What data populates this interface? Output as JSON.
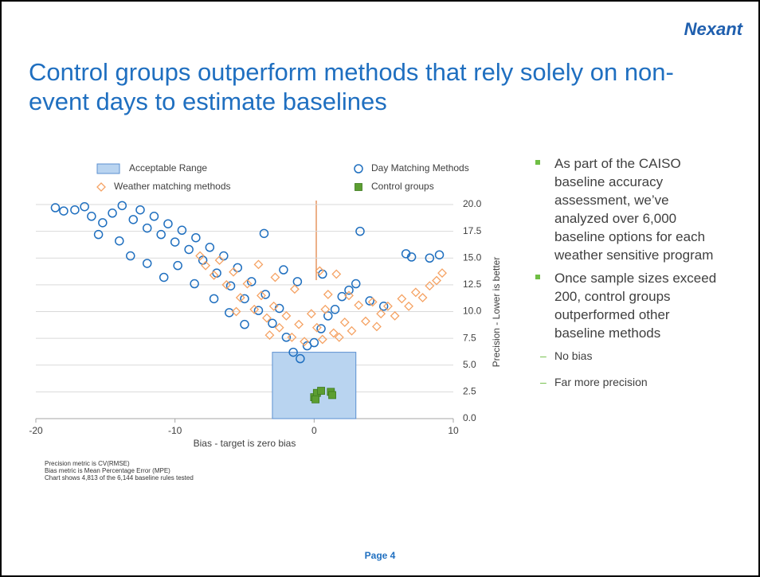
{
  "logo": "Nexant",
  "title": "Control groups outperform methods that rely solely on non-event days to estimate baselines",
  "bullets": [
    {
      "text": "As part of the CAISO baseline accuracy assessment, we’ve analyzed over 6,000 baseline options for each weather sensitive program",
      "sub": []
    },
    {
      "text": "Once sample sizes exceed 200, control groups outperformed other baseline methods",
      "sub": [
        "No bias",
        "Far more precision"
      ]
    }
  ],
  "footnotes": [
    "Precision metric is CV(RMSE)",
    "Bias metric is Mean Percentage Error (MPE)",
    "Chart shows 4,813 of the 6,144 baseline rules tested"
  ],
  "page_label": "Page 4",
  "chart_data": {
    "type": "scatter",
    "xlabel": "Bias - target is zero bias",
    "ylabel": "Precision - Lower is better",
    "xlim": [
      -20,
      10
    ],
    "xticks": [
      -20,
      -10,
      0,
      10
    ],
    "ylim": [
      0,
      20
    ],
    "yticks": [
      {
        "value": 0,
        "label": "0.0"
      },
      {
        "value": 2.5,
        "label": "2.5"
      },
      {
        "value": 5,
        "label": "5.0"
      },
      {
        "value": 7.5,
        "label": "7.5"
      },
      {
        "value": 10,
        "label": "10.0"
      },
      {
        "value": 12.5,
        "label": "12.5"
      },
      {
        "value": 15,
        "label": "15.0"
      },
      {
        "value": 17.5,
        "label": "17.5"
      },
      {
        "value": 20,
        "label": "20.0"
      }
    ],
    "grid": true,
    "acceptable_range": {
      "name": "Acceptable Range",
      "color": "#b9d4f0",
      "x": [
        -3,
        3
      ],
      "y": [
        0,
        6.2
      ]
    },
    "series": [
      {
        "name": "Day Matching Methods",
        "color": "#1f6fbf",
        "marker": "circle",
        "x": [
          -18.6,
          -18,
          -17.2,
          -16.5,
          -16,
          -15.2,
          -14.5,
          -13.8,
          -13,
          -12.5,
          -12,
          -11.5,
          -11,
          -10.5,
          -10,
          -9.5,
          -9,
          -8.5,
          -8,
          -7.5,
          -7,
          -6.5,
          -6,
          -5.5,
          -5,
          -4.5,
          -4,
          -3.5,
          -3,
          -2.5,
          -2,
          -1.5,
          -1,
          -0.5,
          0,
          0.5,
          1,
          1.5,
          2,
          2.5,
          3,
          -14,
          -13.2,
          -12,
          -10.8,
          -15.5,
          -3.6,
          3.3,
          6.6,
          7,
          8.3,
          9,
          0.6,
          -1.2,
          -2.2,
          -9.8,
          -8.6,
          -7.2,
          -6.1,
          -5,
          4,
          5
        ],
        "values": [
          19.7,
          19.4,
          19.5,
          19.8,
          18.9,
          18.3,
          19.2,
          19.9,
          18.6,
          19.5,
          17.8,
          18.9,
          17.2,
          18.2,
          16.5,
          17.6,
          15.8,
          16.9,
          14.8,
          16,
          13.6,
          15.2,
          12.4,
          14.1,
          11.2,
          12.8,
          10.1,
          11.6,
          8.9,
          10.3,
          7.6,
          6.2,
          5.6,
          6.8,
          7.1,
          8.4,
          9.6,
          10.2,
          11.4,
          12,
          12.6,
          16.6,
          15.2,
          14.5,
          13.2,
          17.2,
          17.3,
          17.5,
          15.4,
          15.1,
          15,
          15.3,
          13.5,
          12.8,
          13.9,
          14.3,
          12.6,
          11.2,
          9.9,
          8.8,
          11,
          10.5
        ]
      },
      {
        "name": "Weather matching methods",
        "color": "#f5a263",
        "marker": "diamond",
        "x": [
          -8.2,
          -7.8,
          -7.2,
          -6.8,
          -6.3,
          -5.8,
          -5.3,
          -4.8,
          -4.3,
          -3.8,
          -3.4,
          -2.9,
          -2.5,
          -2,
          -1.6,
          -1.1,
          -0.7,
          -0.2,
          0.2,
          0.6,
          1,
          1.4,
          1.8,
          2.2,
          2.7,
          3.2,
          3.7,
          4.2,
          4.8,
          5.3,
          5.8,
          6.3,
          6.8,
          7.3,
          7.8,
          8.3,
          8.8,
          9.2,
          -4,
          -2.8,
          -1.4,
          0.4,
          1.6,
          2.5,
          -5.6,
          -3.2,
          0.8,
          4.5
        ],
        "values": [
          15.2,
          14.3,
          13.4,
          14.8,
          12.5,
          13.7,
          11.3,
          12.6,
          10.2,
          11.5,
          9.4,
          10.5,
          8.5,
          9.6,
          7.6,
          8.8,
          7.2,
          9.8,
          8.5,
          7.4,
          11.6,
          8,
          7.6,
          9,
          8.2,
          10.6,
          9.1,
          10.9,
          9.8,
          10.5,
          9.6,
          11.2,
          10.5,
          11.8,
          11.3,
          12.4,
          12.9,
          13.6,
          14.4,
          13.2,
          12.1,
          13.8,
          13.5,
          11.5,
          10,
          7.8,
          10.2,
          8.6
        ]
      },
      {
        "name": "Control groups",
        "color": "#5c9e31",
        "marker": "square",
        "x": [
          0,
          0.2,
          0.5,
          1.2,
          1.3,
          0.1
        ],
        "values": [
          2.0,
          2.4,
          2.6,
          2.5,
          2.2,
          1.8
        ]
      }
    ]
  }
}
